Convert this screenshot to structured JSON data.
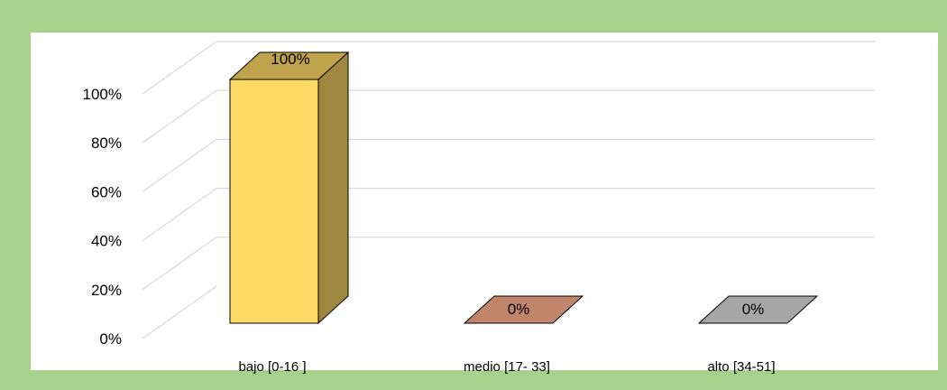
{
  "chart_data": {
    "type": "bar",
    "title": "",
    "xlabel": "",
    "ylabel": "",
    "categories": [
      "bajo [0-16 ]",
      "medio  [17- 33]",
      "alto  [34-51]"
    ],
    "values": [
      100,
      0,
      0
    ],
    "data_labels": [
      "100%",
      "0%",
      "0%"
    ],
    "ylim": [
      0,
      100
    ],
    "y_ticks": [
      {
        "value": 0,
        "label": "0%"
      },
      {
        "value": 20,
        "label": "20%"
      },
      {
        "value": 40,
        "label": "40%"
      },
      {
        "value": 60,
        "label": "60%"
      },
      {
        "value": 80,
        "label": "80%"
      },
      {
        "value": 100,
        "label": "100%"
      }
    ],
    "bar_colors": [
      "#ffd966",
      "#c0856a",
      "#a6a6a6"
    ],
    "three_d": true,
    "grid": true,
    "legend": "none"
  }
}
